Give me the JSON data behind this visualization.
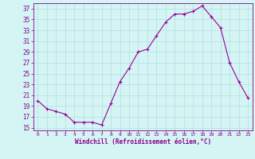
{
  "x": [
    0,
    1,
    2,
    3,
    4,
    5,
    6,
    7,
    8,
    9,
    10,
    11,
    12,
    13,
    14,
    15,
    16,
    17,
    18,
    19,
    20,
    21,
    22,
    23
  ],
  "y": [
    20,
    18.5,
    18,
    17.5,
    16,
    16,
    16,
    15.5,
    19.5,
    23.5,
    26,
    29,
    29.5,
    32,
    34.5,
    36,
    36,
    36.5,
    37.5,
    35.5,
    33.5,
    27,
    23.5,
    20.5
  ],
  "line_color": "#990099",
  "marker": "+",
  "background_color": "#d5f5f5",
  "grid_color": "#b0dede",
  "xlabel": "Windchill (Refroidissement éolien,°C)",
  "xlabel_color": "#880088",
  "tick_color": "#880088",
  "ylim": [
    14.5,
    38
  ],
  "yticks": [
    15,
    17,
    19,
    21,
    23,
    25,
    27,
    29,
    31,
    33,
    35,
    37
  ],
  "xlim": [
    -0.5,
    23.5
  ],
  "xticks": [
    0,
    1,
    2,
    3,
    4,
    5,
    6,
    7,
    8,
    9,
    10,
    11,
    12,
    13,
    14,
    15,
    16,
    17,
    18,
    19,
    20,
    21,
    22,
    23
  ]
}
